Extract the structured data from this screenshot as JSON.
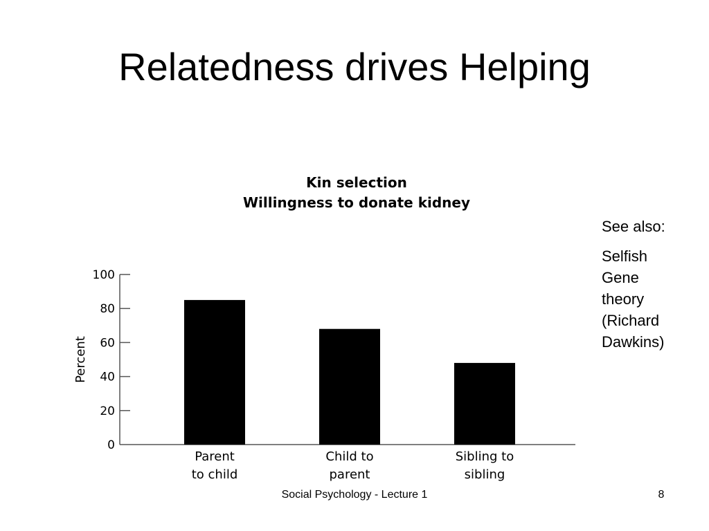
{
  "slide": {
    "title": "Relatedness drives Helping",
    "side_note": {
      "heading": "See also:",
      "lines": [
        "Selfish",
        "Gene",
        "theory",
        "(Richard",
        "Dawkins)"
      ]
    },
    "footer": "Social Psychology - Lecture 1",
    "page_number": "8"
  },
  "chart_data": {
    "type": "bar",
    "title": "Kin selection",
    "subtitle": "Willingness to donate kidney",
    "categories": [
      "Parent to child",
      "Child to parent",
      "Sibling to sibling"
    ],
    "category_lines": [
      [
        "Parent",
        "to child"
      ],
      [
        "Child to",
        "parent"
      ],
      [
        "Sibling to",
        "sibling"
      ]
    ],
    "values": [
      85,
      68,
      48
    ],
    "xlabel": "",
    "ylabel": "Percent",
    "ylim": [
      0,
      100
    ],
    "yticks": [
      0,
      20,
      40,
      60,
      80,
      100
    ],
    "grid": false,
    "legend": null,
    "bar_color": "#000000"
  }
}
